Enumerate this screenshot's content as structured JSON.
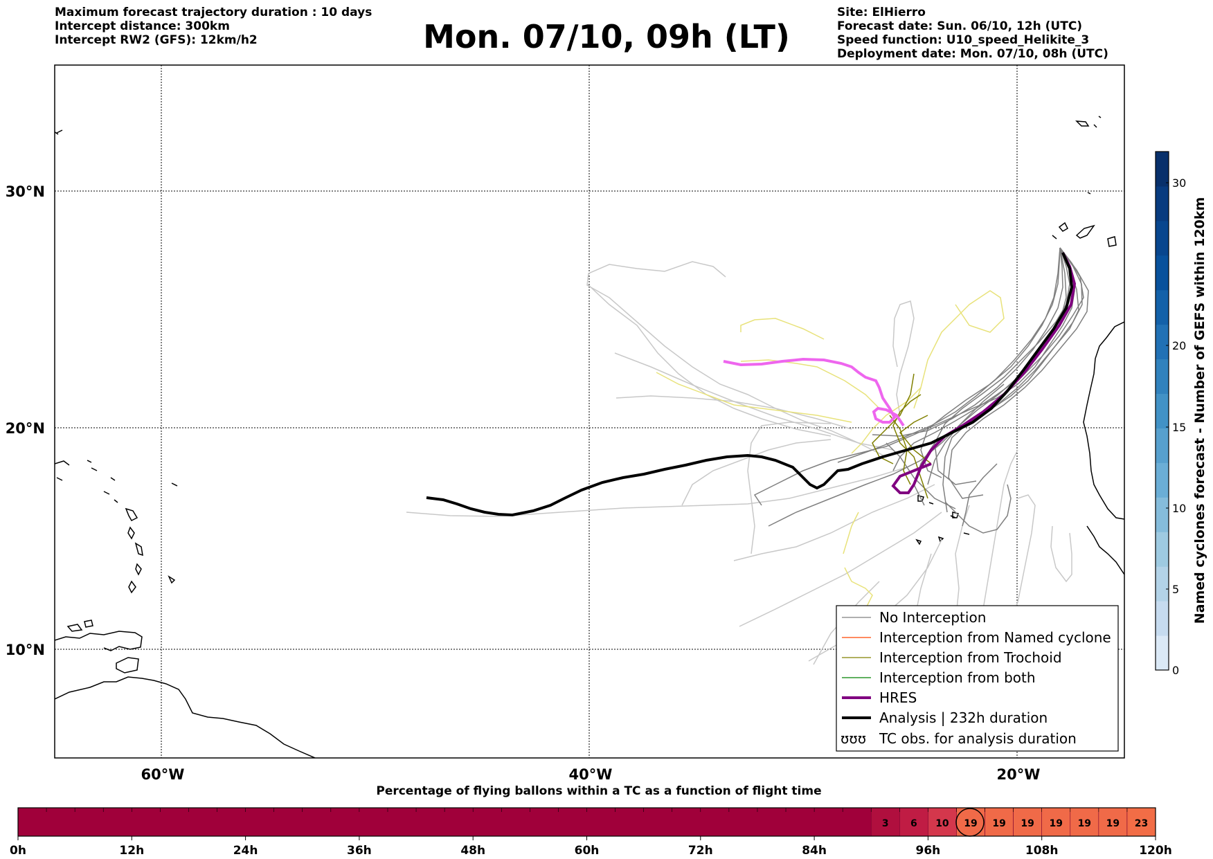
{
  "header": {
    "left_lines": [
      "Maximum forecast trajectory duration : 10 days",
      "Intercept distance: 300km",
      "Intercept RW2 (GFS):  12km/h2"
    ],
    "title": "Mon. 07/10, 09h (LT)",
    "right_lines": [
      "Site: ElHierro",
      "Forecast date: Sun. 06/10, 12h (UTC)",
      "Speed function: U10_speed_Helikite_3",
      "Deployment date: Mon. 07/10, 08h (UTC)"
    ]
  },
  "map": {
    "lat_labels": [
      "30°N",
      "20°N",
      "10°N"
    ],
    "lon_labels": [
      "60°W",
      "40°W",
      "20°W"
    ],
    "colors": {
      "no_interception": "#7f7f7f",
      "faded_track": "#c8c8c8",
      "trochoid": "#808000",
      "trochoid_faded": "#e8e27a",
      "named_cyclone": "#ff4500",
      "both": "#008000",
      "hres": "#800080",
      "hres_faded": "#ee66ee",
      "analysis": "#000000"
    }
  },
  "legend": {
    "items": [
      {
        "label": "No Interception",
        "color": "#7f7f7f",
        "width": 1.3
      },
      {
        "label": "Interception from Named cyclone",
        "color": "#ff4500",
        "width": 1.3
      },
      {
        "label": "Interception from Trochoid",
        "color": "#808000",
        "width": 1.3
      },
      {
        "label": "Interception from both",
        "color": "#008000",
        "width": 1.3
      },
      {
        "label": "HRES",
        "color": "#800080",
        "width": 4
      },
      {
        "label": "Analysis | 232h duration",
        "color": "#000000",
        "width": 4
      }
    ],
    "tc_obs_symbol": "ʊʊʊ",
    "tc_obs_label": "TC obs. for analysis duration"
  },
  "colorbar": {
    "label": "Named cyclones forecast - Number of GEFS within 120km",
    "ticks": [
      "0",
      "5",
      "10",
      "15",
      "20",
      "30"
    ],
    "colors": [
      "#dbe9f6",
      "#c6dbef",
      "#b3d3e8",
      "#9ecae1",
      "#85bcdb",
      "#6baed6",
      "#57a0ce",
      "#4292c6",
      "#3182bd",
      "#2171b5",
      "#1361a9",
      "#08519c",
      "#08468e",
      "#083b7f",
      "#08306b"
    ]
  },
  "timebar": {
    "title": "Percentage of flying ballons within a TC as a function of flight time",
    "tick_labels": [
      "0h",
      "12h",
      "24h",
      "36h",
      "48h",
      "60h",
      "72h",
      "84h",
      "96h",
      "108h",
      "120h"
    ],
    "base_color": "#a0003a",
    "cells": [
      {
        "value": "3",
        "color": "#b00f3e"
      },
      {
        "value": "6",
        "color": "#c01c44"
      },
      {
        "value": "10",
        "color": "#d4374c"
      },
      {
        "value": "19",
        "color": "#f06a48"
      },
      {
        "value": "19",
        "color": "#f06a48"
      },
      {
        "value": "19",
        "color": "#f06a48"
      },
      {
        "value": "19",
        "color": "#f06a48"
      },
      {
        "value": "19",
        "color": "#f06a48"
      },
      {
        "value": "19",
        "color": "#f06a48"
      },
      {
        "value": "23",
        "color": "#f26d46"
      }
    ],
    "highlight": "19"
  }
}
